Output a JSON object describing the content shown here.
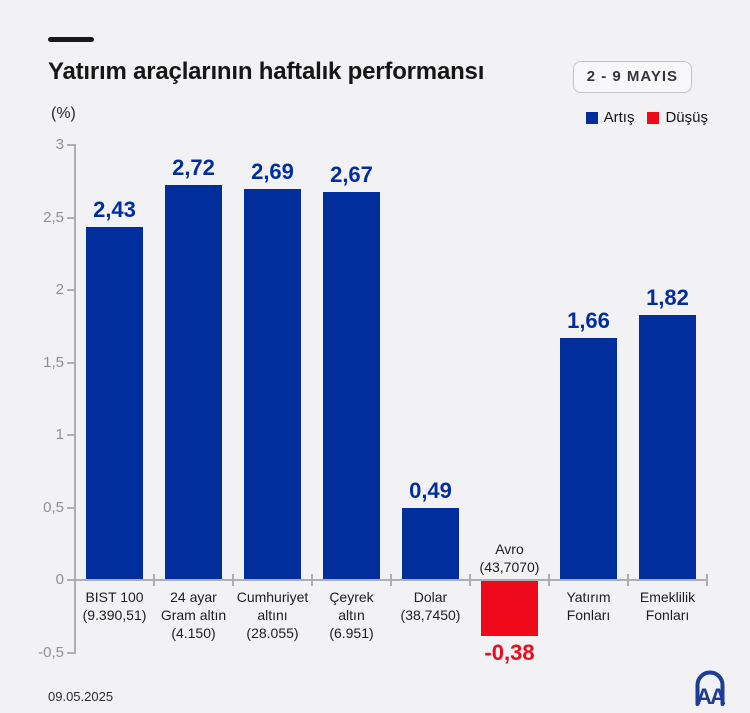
{
  "header": {
    "title": "Yatırım araçlarının haftalık performansı",
    "unit_label": "(%)",
    "date_badge": "2 - 9 MAYIS",
    "legend": [
      {
        "label": "Artış",
        "color": "#012e9d"
      },
      {
        "label": "Düşüş",
        "color": "#ee0a1b"
      }
    ]
  },
  "footer": {
    "date": "09.05.2025",
    "logo_text": "AA"
  },
  "chart_data": {
    "type": "bar",
    "title": "Yatırım araçlarının haftalık performansı",
    "unit": "%",
    "ylim": [
      -0.5,
      3
    ],
    "grid": false,
    "legend_position": "top-right",
    "yticks": [
      {
        "value": 3,
        "label": "3"
      },
      {
        "value": 2.5,
        "label": "2,5"
      },
      {
        "value": 2,
        "label": "2"
      },
      {
        "value": 1.5,
        "label": "1,5"
      },
      {
        "value": 1,
        "label": "1"
      },
      {
        "value": 0.5,
        "label": "0,5"
      },
      {
        "value": 0,
        "label": "0"
      },
      {
        "value": -0.5,
        "label": "-0,5"
      }
    ],
    "bars": [
      {
        "category": "BIST 100",
        "category_lines": [
          "BIST 100"
        ],
        "detail": "(9.390,51)",
        "value": 2.43,
        "value_label": "2,43",
        "direction": "up"
      },
      {
        "category": "24 ayar Gram altın",
        "category_lines": [
          "24 ayar",
          "Gram altın"
        ],
        "detail": "(4.150)",
        "value": 2.72,
        "value_label": "2,72",
        "direction": "up"
      },
      {
        "category": "Cumhuriyet altını",
        "category_lines": [
          "Cumhuriyet",
          "altını"
        ],
        "detail": "(28.055)",
        "value": 2.69,
        "value_label": "2,69",
        "direction": "up"
      },
      {
        "category": "Çeyrek altın",
        "category_lines": [
          "Çeyrek",
          "altın"
        ],
        "detail": "(6.951)",
        "value": 2.67,
        "value_label": "2,67",
        "direction": "up"
      },
      {
        "category": "Dolar",
        "category_lines": [
          "Dolar"
        ],
        "detail": "(38,7450)",
        "value": 0.49,
        "value_label": "0,49",
        "direction": "up"
      },
      {
        "category": "Avro",
        "category_lines": [
          "Avro"
        ],
        "detail": "(43,7070)",
        "value": -0.38,
        "value_label": "-0,38",
        "direction": "down",
        "label_position": "above"
      },
      {
        "category": "Yatırım Fonları",
        "category_lines": [
          "Yatırım",
          "Fonları"
        ],
        "detail": "",
        "value": 1.66,
        "value_label": "1,66",
        "direction": "up"
      },
      {
        "category": "Emeklilik Fonları",
        "category_lines": [
          "Emeklilik",
          "Fonları"
        ],
        "detail": "",
        "value": 1.82,
        "value_label": "1,82",
        "direction": "up"
      }
    ],
    "colors": {
      "up": "#012e9d",
      "down": "#ee0a1b",
      "axis": "#aeaeb2",
      "tick_label": "#8f8f94",
      "category_label": "#1d1d1f",
      "background": "#f2f2f4"
    }
  }
}
